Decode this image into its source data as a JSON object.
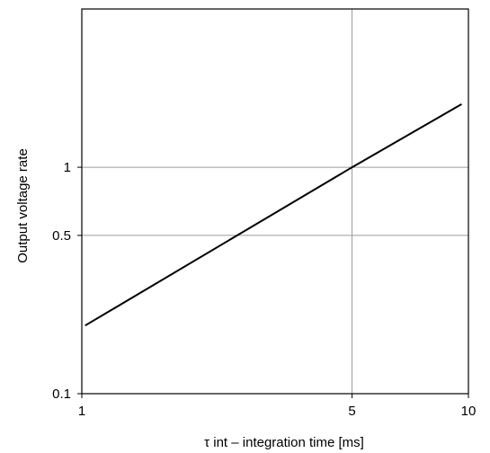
{
  "chart_data": {
    "type": "line",
    "title": "",
    "xlabel": "τ int – integration time [ms]",
    "ylabel": "Output voltage rate",
    "xscale": "log",
    "yscale": "log",
    "xlim": [
      1,
      10
    ],
    "ylim": [
      0.1,
      5
    ],
    "grid": "lines at x=5 and y=0.5, 1",
    "x_ticks": [
      {
        "value": 1,
        "label": "1"
      },
      {
        "value": 5,
        "label": "5"
      },
      {
        "value": 10,
        "label": "10"
      }
    ],
    "y_ticks": [
      {
        "value": 0.1,
        "label": "0.1"
      },
      {
        "value": 0.5,
        "label": "0.5"
      },
      {
        "value": 1,
        "label": "1"
      }
    ],
    "grid_x": [
      5
    ],
    "grid_y": [
      0.5,
      1
    ],
    "series": [
      {
        "x": [
          1.02,
          5,
          9.6
        ],
        "y": [
          0.2,
          1,
          1.9
        ]
      }
    ],
    "line_color": "#000000",
    "grid_color": "#9a9a9a"
  }
}
